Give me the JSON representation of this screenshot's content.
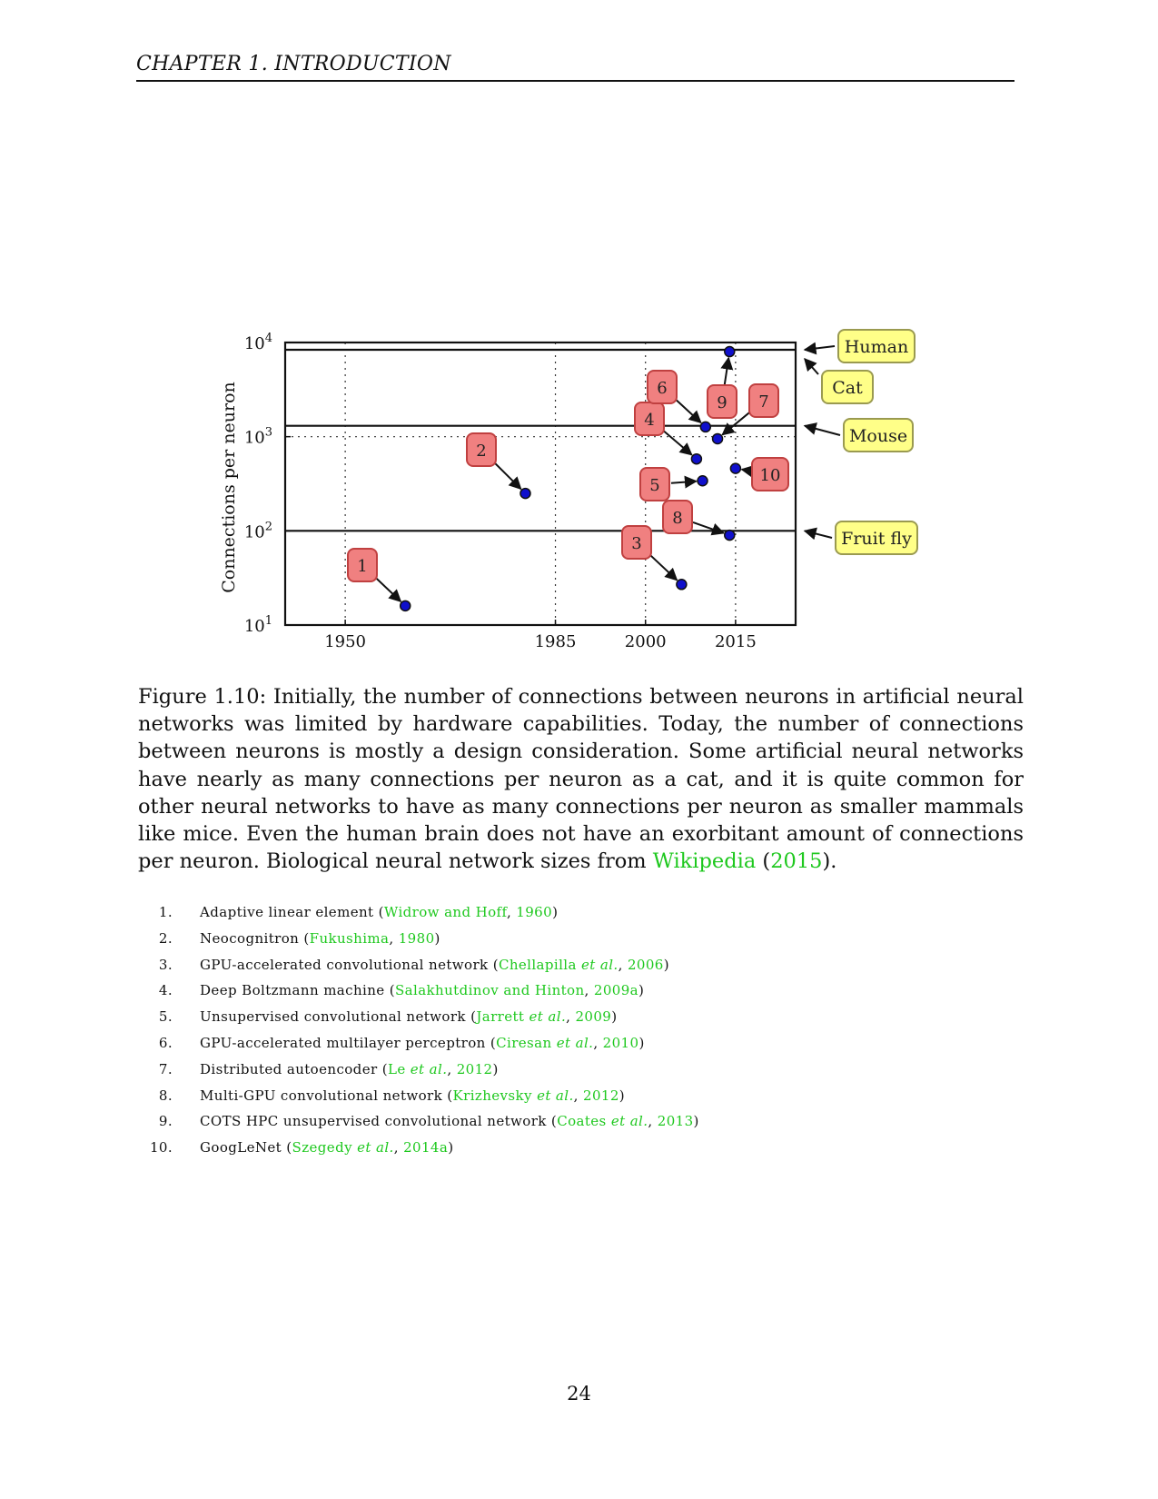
{
  "header": {
    "chapter_title": "CHAPTER 1.   INTRODUCTION"
  },
  "chart_data": {
    "type": "scatter",
    "ylabel": "Connections per neuron",
    "yscale": "log",
    "ylim": [
      10,
      10000
    ],
    "xlim": [
      1940,
      2025
    ],
    "x_ticks": [
      1950,
      1985,
      2000,
      2015
    ],
    "y_ticks": [
      {
        "value": 10,
        "base": "10",
        "exp": "1"
      },
      {
        "value": 100,
        "base": "10",
        "exp": "2"
      },
      {
        "value": 1000,
        "base": "10",
        "exp": "3"
      },
      {
        "value": 10000,
        "base": "10",
        "exp": "4"
      }
    ],
    "grid": "dotted",
    "points": [
      {
        "label": "1",
        "x": 1960,
        "y": 16
      },
      {
        "label": "2",
        "x": 1980,
        "y": 250
      },
      {
        "label": "3",
        "x": 2006,
        "y": 27
      },
      {
        "label": "4",
        "x": 2008.5,
        "y": 580
      },
      {
        "label": "5",
        "x": 2009.5,
        "y": 340
      },
      {
        "label": "6",
        "x": 2010,
        "y": 1270
      },
      {
        "label": "7",
        "x": 2012,
        "y": 950
      },
      {
        "label": "8",
        "x": 2014,
        "y": 90
      },
      {
        "label": "9",
        "x": 2014,
        "y": 8000
      },
      {
        "label": "10",
        "x": 2015,
        "y": 460
      }
    ],
    "references": [
      {
        "name": "Human",
        "y": 10000
      },
      {
        "name": "Cat",
        "y": 8000
      },
      {
        "name": "Mouse",
        "y": 1000
      },
      {
        "name": "Fruit fly",
        "y": 100
      }
    ]
  },
  "caption": {
    "label": "Figure 1.10:",
    "text": " Initially, the number of connections between neurons in artificial neural networks was limited by hardware capabilities. Today, the number of connections between neurons is mostly a design consideration. Some artificial neural networks have nearly as many connections per neuron as a cat, and it is quite common for other neural networks to have as many connections per neuron as smaller mammals like mice. Even the human brain does not have an exorbitant amount of connections per neuron. Biological neural network sizes from ",
    "link_text": "Wikipedia",
    "link_year": "2015",
    "open_paren": "(",
    "close_paren": ")."
  },
  "references": [
    {
      "num": "1.",
      "title": "Adaptive linear element",
      "authors": "Widrow and Hoff",
      "etal": "",
      "year": "1960"
    },
    {
      "num": "2.",
      "title": "Neocognitron",
      "authors": "Fukushima",
      "etal": "",
      "year": "1980"
    },
    {
      "num": "3.",
      "title": "GPU-accelerated convolutional network",
      "authors": "Chellapilla",
      "etal": "et al.",
      "year": "2006"
    },
    {
      "num": "4.",
      "title": "Deep Boltzmann machine",
      "authors": "Salakhutdinov and Hinton",
      "etal": "",
      "year": "2009a"
    },
    {
      "num": "5.",
      "title": "Unsupervised convolutional network",
      "authors": "Jarrett",
      "etal": "et al.",
      "year": "2009"
    },
    {
      "num": "6.",
      "title": "GPU-accelerated multilayer perceptron",
      "authors": "Ciresan",
      "etal": "et al.",
      "year": "2010"
    },
    {
      "num": "7.",
      "title": "Distributed autoencoder",
      "authors": "Le",
      "etal": "et al.",
      "year": "2012"
    },
    {
      "num": "8.",
      "title": "Multi-GPU convolutional network",
      "authors": "Krizhevsky",
      "etal": "et al.",
      "year": "2012"
    },
    {
      "num": "9.",
      "title": "COTS HPC unsupervised convolutional network",
      "authors": "Coates",
      "etal": "et al.",
      "year": "2013"
    },
    {
      "num": "10.",
      "title": "GoogLeNet",
      "authors": "Szegedy",
      "etal": "et al.",
      "year": "2014a"
    }
  ],
  "page_number": "24",
  "colors": {
    "point_fill": "#1010cc",
    "label_fill": "#f08080",
    "label_stroke": "#c04040",
    "ref_fill": "#ffff88",
    "ref_stroke": "#9a9a50",
    "link": "#1ec81e"
  }
}
